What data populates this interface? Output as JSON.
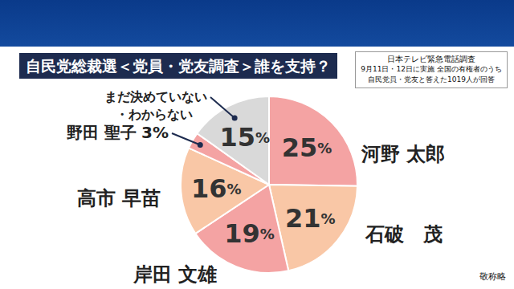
{
  "chart_data": {
    "type": "pie",
    "title": "自民党総裁選＜党員・党友調査＞誰を支持？",
    "subtitle": [
      "日本テレビ緊急電話調査",
      "9月11日・12日に実施 全国の有権者のうち",
      "自民党員・党友と答えた1019人が回答"
    ],
    "annotations": [
      "敬称略"
    ],
    "categories": [
      "河野 太郎",
      "石破　茂",
      "岸田 文雄",
      "高市 早苗",
      "野田 聖子",
      "まだ決めていない・わからない"
    ],
    "values": [
      25,
      21,
      19,
      16,
      3,
      15
    ],
    "value_labels": [
      "25%",
      "21%",
      "19%",
      "16%",
      "3%",
      "15%"
    ],
    "colors": [
      "#f4a3a3",
      "#f9c7a6",
      "#f4a3a3",
      "#f9c7a6",
      "#f4a3a3",
      "#d9d9d9"
    ],
    "data_labels": true
  }
}
